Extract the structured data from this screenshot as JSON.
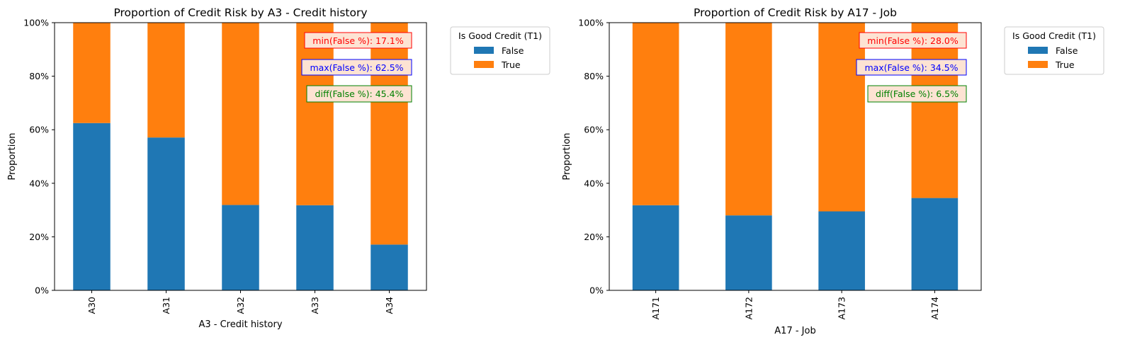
{
  "chart_data": [
    {
      "type": "bar",
      "stacked": true,
      "title": "Proportion of Credit Risk by A3 - Credit history",
      "xlabel": "A3 - Credit history",
      "ylabel": "Proportion",
      "ylim": [
        0,
        1
      ],
      "yticks": [
        "0%",
        "20%",
        "40%",
        "60%",
        "80%",
        "100%"
      ],
      "categories": [
        "A30",
        "A31",
        "A32",
        "A33",
        "A34"
      ],
      "series": [
        {
          "name": "False",
          "color": "#1f77b4",
          "values": [
            0.625,
            0.571,
            0.319,
            0.318,
            0.171
          ]
        },
        {
          "name": "True",
          "color": "#ff7f0e",
          "values": [
            0.375,
            0.429,
            0.681,
            0.682,
            0.829
          ]
        }
      ],
      "legend": {
        "title": "Is Good Credit (T1)",
        "placement": "outside-upper-right"
      },
      "annotations": [
        {
          "text": "min(False %): 17.1%",
          "color": "#ff0000"
        },
        {
          "text": "max(False %): 62.5%",
          "color": "#0000ff"
        },
        {
          "text": "diff(False %): 45.4%",
          "color": "#008000"
        }
      ]
    },
    {
      "type": "bar",
      "stacked": true,
      "title": "Proportion of Credit Risk by A17 - Job",
      "xlabel": "A17 - Job",
      "ylabel": "Proportion",
      "ylim": [
        0,
        1
      ],
      "yticks": [
        "0%",
        "20%",
        "40%",
        "60%",
        "80%",
        "100%"
      ],
      "categories": [
        "A171",
        "A172",
        "A173",
        "A174"
      ],
      "series": [
        {
          "name": "False",
          "color": "#1f77b4",
          "values": [
            0.318,
            0.28,
            0.295,
            0.345
          ]
        },
        {
          "name": "True",
          "color": "#ff7f0e",
          "values": [
            0.682,
            0.72,
            0.705,
            0.655
          ]
        }
      ],
      "legend": {
        "title": "Is Good Credit (T1)",
        "placement": "outside-upper-right"
      },
      "annotations": [
        {
          "text": "min(False %): 28.0%",
          "color": "#ff0000"
        },
        {
          "text": "max(False %): 34.5%",
          "color": "#0000ff"
        },
        {
          "text": "diff(False %): 6.5%",
          "color": "#008000"
        }
      ]
    }
  ]
}
